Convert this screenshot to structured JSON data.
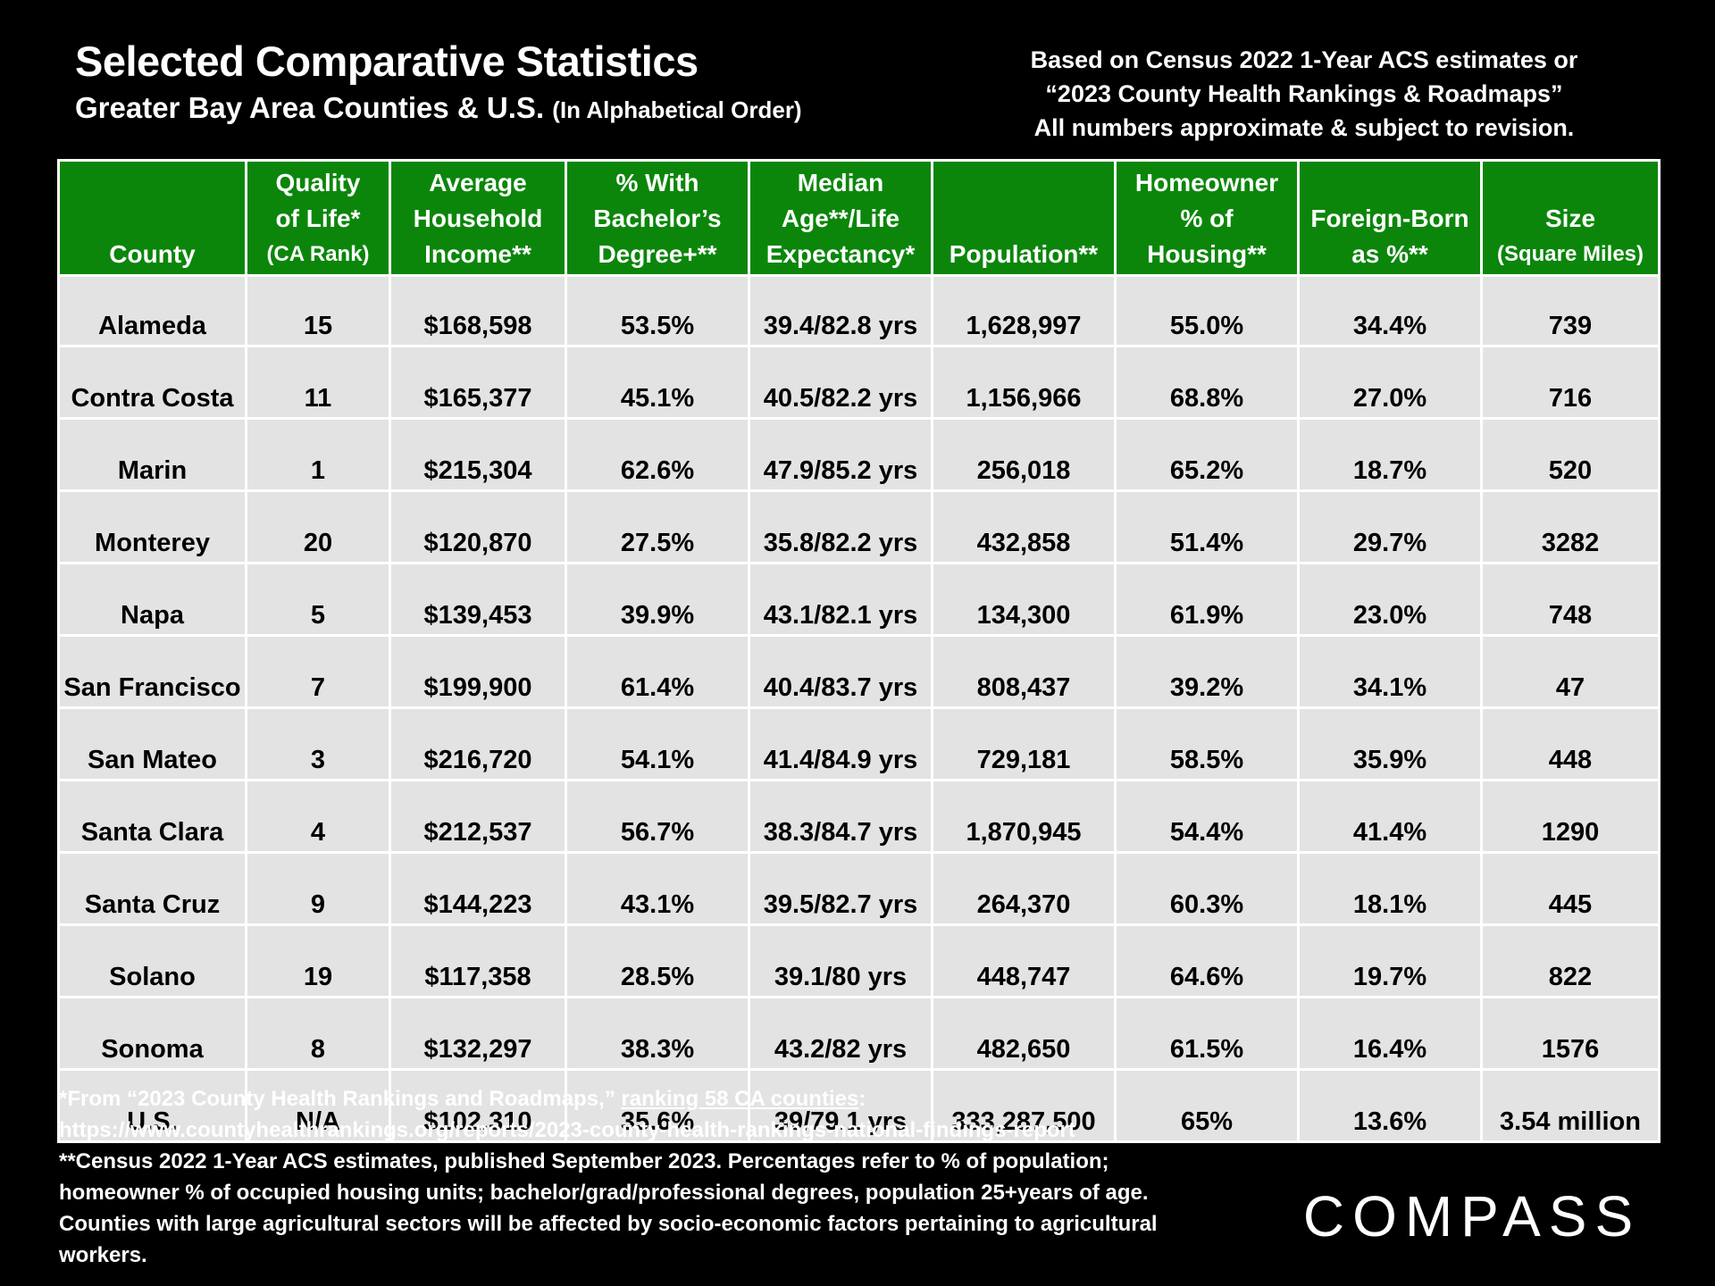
{
  "header": {
    "title": "Selected Comparative Statistics",
    "subtitle": "Greater Bay Area Counties & U.S.",
    "subtitle_note": "(In Alphabetical Order)",
    "source_lines": [
      "Based on Census 2022 1-Year ACS estimates or",
      "“2023 County Health Rankings & Roadmaps”",
      "All numbers approximate & subject to revision."
    ]
  },
  "table": {
    "columns": [
      {
        "lines": [
          "County"
        ],
        "small": ""
      },
      {
        "lines": [
          "Quality",
          "of Life*"
        ],
        "small": "(CA Rank)"
      },
      {
        "lines": [
          "Average",
          "Household",
          "Income**"
        ],
        "small": ""
      },
      {
        "lines": [
          "% With",
          "Bachelor’s",
          "Degree+**"
        ],
        "small": ""
      },
      {
        "lines": [
          "Median",
          "Age**/Life",
          "Expectancy*"
        ],
        "small": ""
      },
      {
        "lines": [
          "Population**"
        ],
        "small": ""
      },
      {
        "lines": [
          "Homeowner",
          "% of",
          "Housing**"
        ],
        "small": ""
      },
      {
        "lines": [
          "Foreign-Born",
          "as %**"
        ],
        "small": ""
      },
      {
        "lines": [
          "Size"
        ],
        "small": "(Square Miles)"
      }
    ],
    "rows": [
      [
        "Alameda",
        "15",
        "$168,598",
        "53.5%",
        "39.4/82.8 yrs",
        "1,628,997",
        "55.0%",
        "34.4%",
        "739"
      ],
      [
        "Contra Costa",
        "11",
        "$165,377",
        "45.1%",
        "40.5/82.2 yrs",
        "1,156,966",
        "68.8%",
        "27.0%",
        "716"
      ],
      [
        "Marin",
        "1",
        "$215,304",
        "62.6%",
        "47.9/85.2 yrs",
        "256,018",
        "65.2%",
        "18.7%",
        "520"
      ],
      [
        "Monterey",
        "20",
        "$120,870",
        "27.5%",
        "35.8/82.2 yrs",
        "432,858",
        "51.4%",
        "29.7%",
        "3282"
      ],
      [
        "Napa",
        "5",
        "$139,453",
        "39.9%",
        "43.1/82.1 yrs",
        "134,300",
        "61.9%",
        "23.0%",
        "748"
      ],
      [
        "San Francisco",
        "7",
        "$199,900",
        "61.4%",
        "40.4/83.7 yrs",
        "808,437",
        "39.2%",
        "34.1%",
        "47"
      ],
      [
        "San Mateo",
        "3",
        "$216,720",
        "54.1%",
        "41.4/84.9 yrs",
        "729,181",
        "58.5%",
        "35.9%",
        "448"
      ],
      [
        "Santa Clara",
        "4",
        "$212,537",
        "56.7%",
        "38.3/84.7 yrs",
        "1,870,945",
        "54.4%",
        "41.4%",
        "1290"
      ],
      [
        "Santa Cruz",
        "9",
        "$144,223",
        "43.1%",
        "39.5/82.7 yrs",
        "264,370",
        "60.3%",
        "18.1%",
        "445"
      ],
      [
        "Solano",
        "19",
        "$117,358",
        "28.5%",
        "39.1/80 yrs",
        "448,747",
        "64.6%",
        "19.7%",
        "822"
      ],
      [
        "Sonoma",
        "8",
        "$132,297",
        "38.3%",
        "43.2/82 yrs",
        "482,650",
        "61.5%",
        "16.4%",
        "1576"
      ],
      [
        "U.S.",
        "N/A",
        "$102,310",
        "35.6%",
        "39/79.1 yrs",
        "333,287,500",
        "65%",
        "13.6%",
        "3.54 million"
      ]
    ]
  },
  "footnotes": {
    "line1_prefix": "*From “2023 County Health Rankings and Roadmaps,” ",
    "line1_link": "ranking 58 CA counties",
    "line1_suffix": ":",
    "line2": "https://www.countyhealthrankings.org/reports/2023-county-health-rankings-national-findings-report",
    "line3": "**Census 2022 1-Year ACS estimates, published September 2023. Percentages refer to % of population;",
    "line4": "homeowner % of occupied housing units; bachelor/grad/professional degrees, population 25+years of age.",
    "line5": "Counties with large agricultural sectors will be affected by socio-economic factors pertaining to agricultural",
    "line6": "workers."
  },
  "logo": {
    "text": "COMPASS"
  },
  "colors": {
    "header_green": "#0b860b",
    "cell_gray": "#e3e3e3",
    "background": "#000000"
  }
}
